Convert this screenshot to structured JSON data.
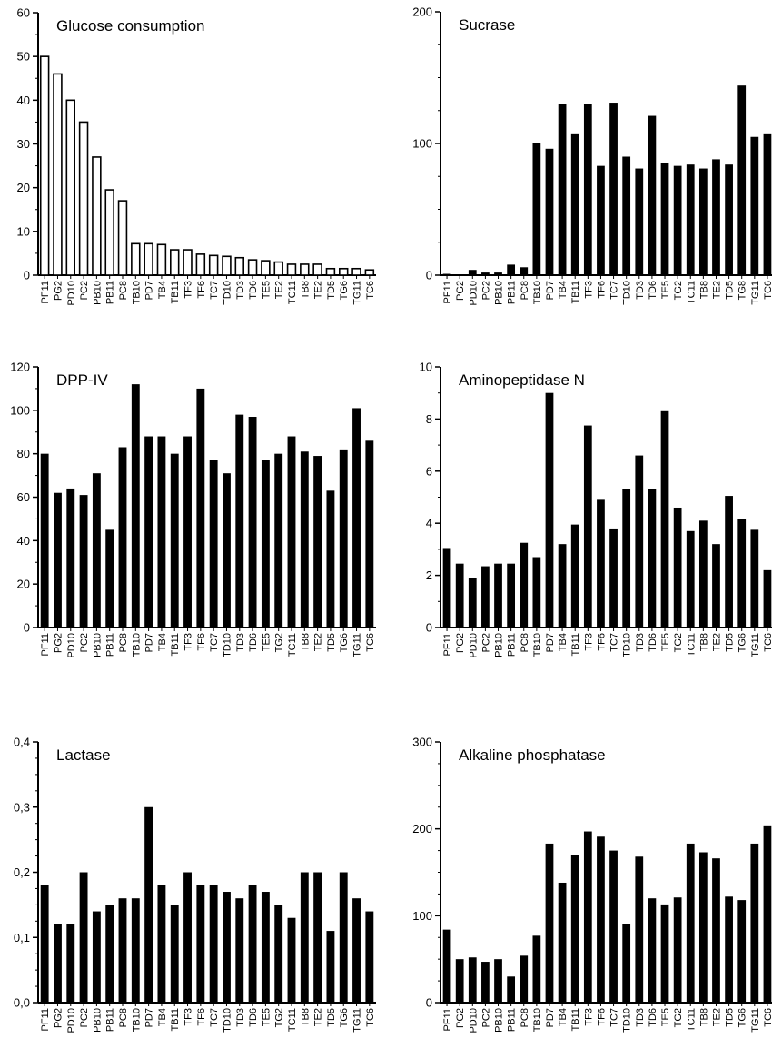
{
  "chart_data": [
    {
      "type": "bar",
      "title": "Glucose consumption",
      "style": "outline",
      "categories": [
        "PF11",
        "PG2",
        "PD10",
        "PC2",
        "PB10",
        "PB11",
        "PC8",
        "TB10",
        "PD7",
        "TB4",
        "TB11",
        "TF3",
        "TF6",
        "TC7",
        "TD10",
        "TD3",
        "TD6",
        "TE5",
        "TE2",
        "TC11",
        "TB8",
        "TE2",
        "TD5",
        "TG6",
        "TG11",
        "TC6"
      ],
      "values": [
        50,
        46,
        40,
        35,
        27,
        19.5,
        17,
        7.2,
        7.2,
        7,
        5.8,
        5.8,
        4.8,
        4.5,
        4.3,
        4,
        3.5,
        3.3,
        3,
        2.5,
        2.5,
        2.5,
        1.5,
        1.5,
        1.5,
        1.2
      ],
      "ylim": [
        0,
        60
      ],
      "yticks": [
        "0",
        "10",
        "20",
        "30",
        "40",
        "50",
        "60"
      ],
      "yminor": 2
    },
    {
      "type": "bar",
      "title": "Sucrase",
      "style": "solid",
      "categories": [
        "PF11",
        "PG2",
        "PD10",
        "PC2",
        "PB10",
        "PB11",
        "PC8",
        "TB10",
        "PD7",
        "TB4",
        "TB11",
        "TF3",
        "TF6",
        "TC7",
        "TD10",
        "TD3",
        "TD6",
        "TE5",
        "TG2",
        "TC11",
        "TB8",
        "TE2",
        "TD5",
        "TG8",
        "TG11",
        "TC6"
      ],
      "values": [
        1,
        0,
        4,
        2,
        2,
        8,
        6,
        100,
        96,
        130,
        107,
        130,
        83,
        131,
        90,
        81,
        121,
        85,
        83,
        84,
        81,
        88,
        84,
        144,
        105,
        107
      ],
      "ylim": [
        0,
        200
      ],
      "yticks": [
        "0",
        "100",
        "200"
      ],
      "yminor": 4
    },
    {
      "type": "bar",
      "title": "DPP-IV",
      "style": "solid",
      "categories": [
        "PF11",
        "PG2",
        "PD10",
        "PC2",
        "PB10",
        "PB11",
        "PC8",
        "TB10",
        "PD7",
        "TB4",
        "TB11",
        "TF3",
        "TF6",
        "TC7",
        "TD10",
        "TD3",
        "TD6",
        "TE5",
        "TG2",
        "TC11",
        "TB8",
        "TE2",
        "TD5",
        "TG6",
        "TG11",
        "TC6"
      ],
      "values": [
        80,
        62,
        64,
        61,
        71,
        45,
        83,
        112,
        88,
        88,
        80,
        88,
        110,
        77,
        71,
        98,
        97,
        77,
        80,
        88,
        81,
        79,
        63,
        82,
        101,
        86
      ],
      "ylim": [
        0,
        120
      ],
      "yticks": [
        "0",
        "20",
        "40",
        "60",
        "80",
        "100",
        "120"
      ],
      "yminor": 2
    },
    {
      "type": "bar",
      "title": "Aminopeptidase N",
      "style": "solid",
      "categories": [
        "PF11",
        "PG2",
        "PD10",
        "PC2",
        "PB10",
        "PB11",
        "PC8",
        "TB10",
        "PD7",
        "TB4",
        "TB11",
        "TF3",
        "TF6",
        "TC7",
        "TD10",
        "TD3",
        "TD6",
        "TE5",
        "TG2",
        "TC11",
        "TB8",
        "TE2",
        "TD5",
        "TG6",
        "TG11",
        "TC6"
      ],
      "values": [
        3.05,
        2.45,
        1.9,
        2.35,
        2.45,
        2.45,
        3.25,
        2.7,
        9.0,
        3.2,
        3.95,
        7.75,
        4.9,
        3.8,
        5.3,
        6.6,
        5.3,
        8.3,
        4.6,
        3.7,
        4.1,
        3.2,
        5.05,
        4.15,
        3.75,
        2.2
      ],
      "ylim": [
        0,
        10
      ],
      "yticks": [
        "0",
        "2",
        "4",
        "6",
        "8",
        "10"
      ],
      "yminor": 2
    },
    {
      "type": "bar",
      "title": "Lactase",
      "style": "solid",
      "categories": [
        "PF11",
        "PG2",
        "PD10",
        "PC2",
        "PB10",
        "PB11",
        "PC8",
        "TB10",
        "PD7",
        "TB4",
        "TB11",
        "TF3",
        "TF6",
        "TC7",
        "TD10",
        "TD3",
        "TD6",
        "TE5",
        "TG2",
        "TC11",
        "TB8",
        "TE2",
        "TD5",
        "TG6",
        "TG11",
        "TC6"
      ],
      "values": [
        0.18,
        0.12,
        0.12,
        0.2,
        0.14,
        0.15,
        0.16,
        0.16,
        0.3,
        0.18,
        0.15,
        0.2,
        0.18,
        0.18,
        0.17,
        0.16,
        0.18,
        0.17,
        0.15,
        0.13,
        0.2,
        0.2,
        0.11,
        0.2,
        0.16,
        0.14
      ],
      "ylim": [
        0,
        0.4
      ],
      "yticks": [
        "0,0",
        "0,1",
        "0,2",
        "0,3",
        "0,4"
      ],
      "yminor": 4
    },
    {
      "type": "bar",
      "title": "Alkaline phosphatase",
      "style": "solid",
      "categories": [
        "PF11",
        "PG2",
        "PD10",
        "PC2",
        "PB10",
        "PB11",
        "PC8",
        "TB10",
        "PD7",
        "TB4",
        "TB11",
        "TF3",
        "TF6",
        "TC7",
        "TD10",
        "TD3",
        "TD6",
        "TE5",
        "TG2",
        "TC11",
        "TB8",
        "TE2",
        "TD5",
        "TG6",
        "TG11",
        "TC6"
      ],
      "values": [
        84,
        50,
        52,
        47,
        50,
        30,
        54,
        77,
        183,
        138,
        170,
        197,
        191,
        175,
        90,
        168,
        120,
        113,
        121,
        183,
        173,
        166,
        122,
        118,
        183,
        204
      ],
      "ylim": [
        0,
        300
      ],
      "yticks": [
        "0",
        "100",
        "200",
        "300"
      ],
      "yminor": 4
    }
  ]
}
